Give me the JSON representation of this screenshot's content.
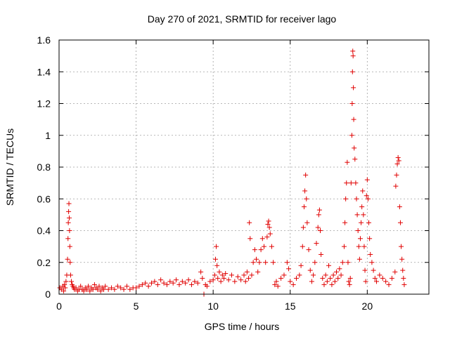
{
  "chart_data": {
    "type": "scatter",
    "title": "Day 270 of 2021, SRMTID for receiver lago",
    "xlabel": "GPS time / hours",
    "ylabel": "SRMTID / TECUs",
    "xlim": [
      0,
      24
    ],
    "ylim": [
      0,
      1.6
    ],
    "xticks": [
      0,
      5,
      10,
      15,
      20
    ],
    "xtick_labels": [
      "0",
      "5",
      "10",
      "15",
      "20"
    ],
    "yticks": [
      0,
      0.2,
      0.4,
      0.6,
      0.8,
      1.0,
      1.2,
      1.4,
      1.6
    ],
    "ytick_labels": [
      "0",
      "0.2",
      "0.4",
      "0.6",
      "0.8",
      "1",
      "1.2",
      "1.4",
      "1.6"
    ],
    "grid": true,
    "marker": "+",
    "color": "#e00000",
    "series": [
      {
        "name": "SRMTID",
        "points": [
          [
            0.05,
            0.04
          ],
          [
            0.15,
            0.03
          ],
          [
            0.25,
            0.05
          ],
          [
            0.3,
            0.02
          ],
          [
            0.35,
            0.06
          ],
          [
            0.4,
            0.04
          ],
          [
            0.45,
            0.08
          ],
          [
            0.5,
            0.12
          ],
          [
            0.55,
            0.22
          ],
          [
            0.58,
            0.35
          ],
          [
            0.6,
            0.45
          ],
          [
            0.62,
            0.52
          ],
          [
            0.64,
            0.57
          ],
          [
            0.66,
            0.48
          ],
          [
            0.68,
            0.4
          ],
          [
            0.7,
            0.3
          ],
          [
            0.72,
            0.2
          ],
          [
            0.75,
            0.12
          ],
          [
            0.8,
            0.08
          ],
          [
            0.85,
            0.06
          ],
          [
            0.9,
            0.05
          ],
          [
            0.95,
            0.04
          ],
          [
            1.0,
            0.03
          ],
          [
            1.1,
            0.04
          ],
          [
            1.2,
            0.02
          ],
          [
            1.3,
            0.03
          ],
          [
            1.4,
            0.05
          ],
          [
            1.5,
            0.03
          ],
          [
            1.6,
            0.02
          ],
          [
            1.7,
            0.04
          ],
          [
            1.8,
            0.03
          ],
          [
            1.9,
            0.05
          ],
          [
            2.0,
            0.02
          ],
          [
            2.1,
            0.04
          ],
          [
            2.2,
            0.03
          ],
          [
            2.3,
            0.06
          ],
          [
            2.4,
            0.04
          ],
          [
            2.5,
            0.03
          ],
          [
            2.6,
            0.05
          ],
          [
            2.7,
            0.02
          ],
          [
            2.8,
            0.04
          ],
          [
            2.9,
            0.03
          ],
          [
            3.0,
            0.05
          ],
          [
            3.2,
            0.03
          ],
          [
            3.4,
            0.04
          ],
          [
            3.6,
            0.03
          ],
          [
            3.8,
            0.05
          ],
          [
            4.0,
            0.04
          ],
          [
            4.2,
            0.03
          ],
          [
            4.4,
            0.05
          ],
          [
            4.6,
            0.03
          ],
          [
            4.8,
            0.04
          ],
          [
            5.0,
            0.04
          ],
          [
            5.2,
            0.05
          ],
          [
            5.4,
            0.06
          ],
          [
            5.6,
            0.07
          ],
          [
            5.8,
            0.05
          ],
          [
            6.0,
            0.07
          ],
          [
            6.2,
            0.08
          ],
          [
            6.4,
            0.06
          ],
          [
            6.6,
            0.09
          ],
          [
            6.8,
            0.07
          ],
          [
            7.0,
            0.06
          ],
          [
            7.2,
            0.08
          ],
          [
            7.4,
            0.07
          ],
          [
            7.6,
            0.09
          ],
          [
            7.8,
            0.06
          ],
          [
            8.0,
            0.08
          ],
          [
            8.2,
            0.07
          ],
          [
            8.4,
            0.09
          ],
          [
            8.6,
            0.06
          ],
          [
            8.8,
            0.08
          ],
          [
            9.0,
            0.07
          ],
          [
            9.2,
            0.14
          ],
          [
            9.3,
            0.1
          ],
          [
            9.4,
            0.0
          ],
          [
            9.5,
            0.06
          ],
          [
            9.6,
            0.05
          ],
          [
            9.8,
            0.08
          ],
          [
            10.0,
            0.09
          ],
          [
            10.1,
            0.12
          ],
          [
            10.15,
            0.22
          ],
          [
            10.2,
            0.3
          ],
          [
            10.25,
            0.18
          ],
          [
            10.3,
            0.1
          ],
          [
            10.4,
            0.14
          ],
          [
            10.5,
            0.08
          ],
          [
            10.6,
            0.12
          ],
          [
            10.7,
            0.1
          ],
          [
            10.8,
            0.13
          ],
          [
            11.0,
            0.09
          ],
          [
            11.2,
            0.12
          ],
          [
            11.4,
            0.08
          ],
          [
            11.6,
            0.11
          ],
          [
            11.8,
            0.09
          ],
          [
            12.0,
            0.12
          ],
          [
            12.1,
            0.08
          ],
          [
            12.2,
            0.14
          ],
          [
            12.3,
            0.1
          ],
          [
            12.35,
            0.45
          ],
          [
            12.4,
            0.35
          ],
          [
            12.5,
            0.12
          ],
          [
            12.6,
            0.2
          ],
          [
            12.7,
            0.28
          ],
          [
            12.8,
            0.22
          ],
          [
            12.9,
            0.14
          ],
          [
            13.0,
            0.2
          ],
          [
            13.1,
            0.28
          ],
          [
            13.2,
            0.35
          ],
          [
            13.3,
            0.3
          ],
          [
            13.4,
            0.2
          ],
          [
            13.5,
            0.36
          ],
          [
            13.55,
            0.44
          ],
          [
            13.6,
            0.46
          ],
          [
            13.65,
            0.42
          ],
          [
            13.7,
            0.38
          ],
          [
            13.8,
            0.3
          ],
          [
            13.9,
            0.2
          ],
          [
            14.0,
            0.06
          ],
          [
            14.1,
            0.08
          ],
          [
            14.2,
            0.05
          ],
          [
            14.4,
            0.1
          ],
          [
            14.6,
            0.12
          ],
          [
            14.8,
            0.2
          ],
          [
            14.9,
            0.16
          ],
          [
            15.0,
            0.08
          ],
          [
            15.2,
            0.06
          ],
          [
            15.4,
            0.1
          ],
          [
            15.6,
            0.12
          ],
          [
            15.7,
            0.18
          ],
          [
            15.8,
            0.3
          ],
          [
            15.85,
            0.42
          ],
          [
            15.9,
            0.55
          ],
          [
            15.95,
            0.65
          ],
          [
            16.0,
            0.75
          ],
          [
            16.05,
            0.6
          ],
          [
            16.1,
            0.45
          ],
          [
            16.2,
            0.28
          ],
          [
            16.3,
            0.15
          ],
          [
            16.4,
            0.08
          ],
          [
            16.5,
            0.12
          ],
          [
            16.6,
            0.2
          ],
          [
            16.7,
            0.32
          ],
          [
            16.8,
            0.42
          ],
          [
            16.85,
            0.5
          ],
          [
            16.9,
            0.53
          ],
          [
            16.95,
            0.4
          ],
          [
            17.0,
            0.25
          ],
          [
            17.1,
            0.1
          ],
          [
            17.2,
            0.06
          ],
          [
            17.3,
            0.12
          ],
          [
            17.4,
            0.08
          ],
          [
            17.5,
            0.18
          ],
          [
            17.6,
            0.1
          ],
          [
            17.7,
            0.06
          ],
          [
            17.8,
            0.12
          ],
          [
            17.9,
            0.08
          ],
          [
            18.0,
            0.14
          ],
          [
            18.1,
            0.1
          ],
          [
            18.2,
            0.16
          ],
          [
            18.3,
            0.12
          ],
          [
            18.4,
            0.2
          ],
          [
            18.5,
            0.3
          ],
          [
            18.55,
            0.45
          ],
          [
            18.6,
            0.6
          ],
          [
            18.65,
            0.7
          ],
          [
            18.7,
            0.83
          ],
          [
            18.75,
            0.2
          ],
          [
            18.8,
            0.08
          ],
          [
            18.85,
            0.06
          ],
          [
            18.9,
            0.1
          ],
          [
            18.95,
            0.7
          ],
          [
            19.0,
            1.0
          ],
          [
            19.02,
            1.2
          ],
          [
            19.04,
            1.4
          ],
          [
            19.06,
            1.53
          ],
          [
            19.08,
            1.5
          ],
          [
            19.1,
            1.3
          ],
          [
            19.12,
            1.1
          ],
          [
            19.15,
            0.92
          ],
          [
            19.2,
            0.85
          ],
          [
            19.25,
            0.7
          ],
          [
            19.3,
            0.6
          ],
          [
            19.35,
            0.5
          ],
          [
            19.4,
            0.4
          ],
          [
            19.45,
            0.3
          ],
          [
            19.5,
            0.22
          ],
          [
            19.55,
            0.35
          ],
          [
            19.6,
            0.45
          ],
          [
            19.65,
            0.55
          ],
          [
            19.7,
            0.65
          ],
          [
            19.75,
            0.5
          ],
          [
            19.8,
            0.3
          ],
          [
            19.85,
            0.15
          ],
          [
            19.9,
            0.08
          ],
          [
            19.95,
            0.62
          ],
          [
            20.0,
            0.72
          ],
          [
            20.05,
            0.6
          ],
          [
            20.1,
            0.45
          ],
          [
            20.15,
            0.35
          ],
          [
            20.2,
            0.25
          ],
          [
            20.3,
            0.2
          ],
          [
            20.4,
            0.15
          ],
          [
            20.5,
            0.1
          ],
          [
            20.6,
            0.08
          ],
          [
            20.8,
            0.12
          ],
          [
            21.0,
            0.1
          ],
          [
            21.2,
            0.08
          ],
          [
            21.4,
            0.06
          ],
          [
            21.6,
            0.1
          ],
          [
            21.8,
            0.14
          ],
          [
            21.85,
            0.68
          ],
          [
            21.9,
            0.75
          ],
          [
            21.95,
            0.82
          ],
          [
            22.0,
            0.86
          ],
          [
            22.05,
            0.84
          ],
          [
            22.1,
            0.55
          ],
          [
            22.15,
            0.45
          ],
          [
            22.2,
            0.3
          ],
          [
            22.25,
            0.22
          ],
          [
            22.3,
            0.15
          ],
          [
            22.35,
            0.1
          ],
          [
            22.4,
            0.06
          ]
        ]
      }
    ]
  }
}
